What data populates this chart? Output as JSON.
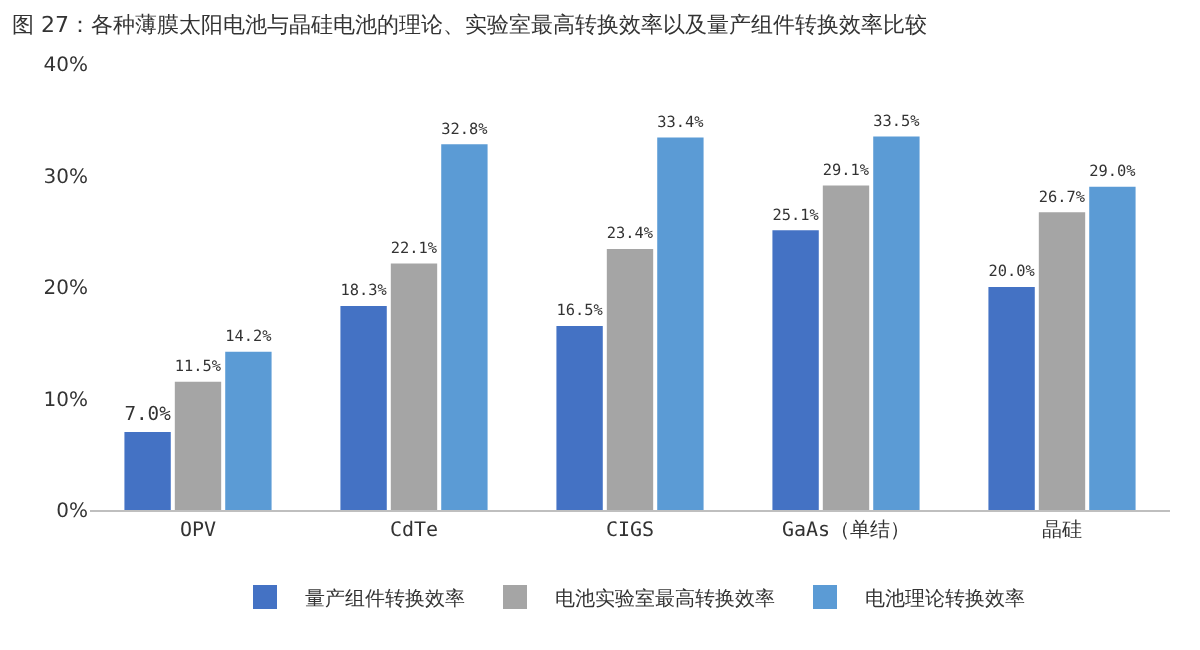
{
  "chart_data": {
    "type": "bar",
    "title": "图 27：各种薄膜太阳电池与晶硅电池的理论、实验室最高转换效率以及量产组件转换效率比较",
    "categories": [
      "OPV",
      "CdTe",
      "CIGS",
      "GaAs（单结）",
      "晶硅"
    ],
    "series": [
      {
        "name": "量产组件转换效率",
        "color": "#4472c4",
        "values": [
          7.0,
          18.3,
          16.5,
          25.1,
          20.0
        ],
        "value_labels": [
          "7.0%",
          "18.3%",
          "16.5%",
          "25.1%",
          "20.0%"
        ]
      },
      {
        "name": "电池实验室最高转换效率",
        "color": "#a5a5a5",
        "values": [
          11.5,
          22.1,
          23.4,
          29.1,
          26.7
        ],
        "value_labels": [
          "11.5%",
          "22.1%",
          "23.4%",
          "29.1%",
          "26.7%"
        ]
      },
      {
        "name": "电池理论转换效率",
        "color": "#5b9bd5",
        "values": [
          14.2,
          32.8,
          33.4,
          33.5,
          29.0
        ],
        "value_labels": [
          "14.2%",
          "32.8%",
          "33.4%",
          "33.5%",
          "29.0%"
        ]
      }
    ],
    "ylim": [
      0,
      40
    ],
    "yticks": [
      {
        "value": 0,
        "label": "0%"
      },
      {
        "value": 10,
        "label": "10%"
      },
      {
        "value": 20,
        "label": "20%"
      },
      {
        "value": 30,
        "label": "30%"
      },
      {
        "value": 40,
        "label": "40%"
      }
    ],
    "grid": false,
    "legend": "bottom"
  }
}
